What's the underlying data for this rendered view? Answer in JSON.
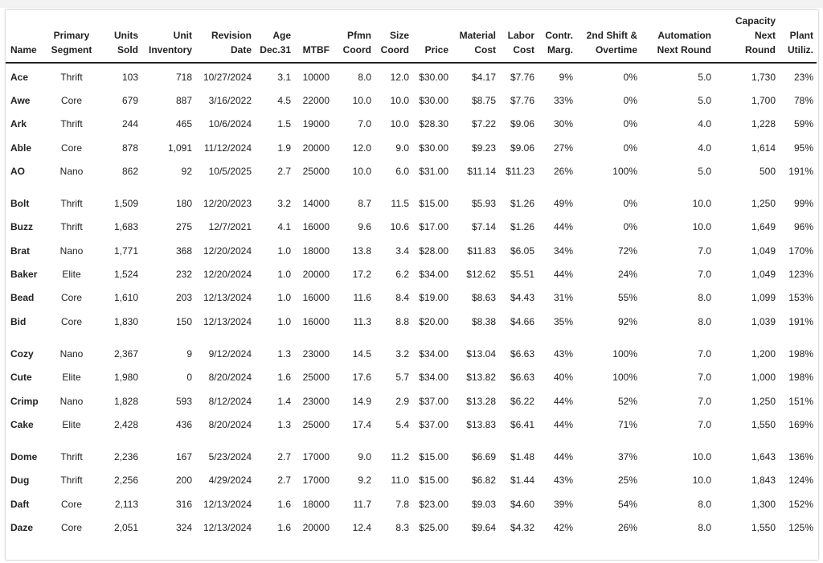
{
  "headers": [
    [
      "Name"
    ],
    [
      "Primary",
      "Segment"
    ],
    [
      "Units",
      "Sold"
    ],
    [
      "Unit",
      "Inventory"
    ],
    [
      "Revision",
      "Date"
    ],
    [
      "Age",
      "Dec.31"
    ],
    [
      "MTBF"
    ],
    [
      "Pfmn",
      "Coord"
    ],
    [
      "Size",
      "Coord"
    ],
    [
      "Price"
    ],
    [
      "Material",
      "Cost"
    ],
    [
      "Labor",
      "Cost"
    ],
    [
      "Contr.",
      "Marg."
    ],
    [
      "2nd Shift &",
      "Overtime"
    ],
    [
      "Automation",
      "Next Round"
    ],
    [
      "Capacity",
      "Next",
      "Round"
    ],
    [
      "Plant",
      "Utiliz."
    ]
  ],
  "groups": [
    [
      [
        "Ace",
        "Thrift",
        "103",
        "718",
        "10/27/2024",
        "3.1",
        "10000",
        "8.0",
        "12.0",
        "$30.00",
        "$4.17",
        "$7.76",
        "9%",
        "0%",
        "5.0",
        "1,730",
        "23%"
      ],
      [
        "Awe",
        "Core",
        "679",
        "887",
        "3/16/2022",
        "4.5",
        "22000",
        "10.0",
        "10.0",
        "$30.00",
        "$8.75",
        "$7.76",
        "33%",
        "0%",
        "5.0",
        "1,700",
        "78%"
      ],
      [
        "Ark",
        "Thrift",
        "244",
        "465",
        "10/6/2024",
        "1.5",
        "19000",
        "7.0",
        "10.0",
        "$28.30",
        "$7.22",
        "$9.06",
        "30%",
        "0%",
        "4.0",
        "1,228",
        "59%"
      ],
      [
        "Able",
        "Core",
        "878",
        "1,091",
        "11/12/2024",
        "1.9",
        "20000",
        "12.0",
        "9.0",
        "$30.00",
        "$9.23",
        "$9.06",
        "27%",
        "0%",
        "4.0",
        "1,614",
        "95%"
      ],
      [
        "AO",
        "Nano",
        "862",
        "92",
        "10/5/2025",
        "2.7",
        "25000",
        "10.0",
        "6.0",
        "$31.00",
        "$11.14",
        "$11.23",
        "26%",
        "100%",
        "5.0",
        "500",
        "191%"
      ]
    ],
    [
      [
        "Bolt",
        "Thrift",
        "1,509",
        "180",
        "12/20/2023",
        "3.2",
        "14000",
        "8.7",
        "11.5",
        "$15.00",
        "$5.93",
        "$1.26",
        "49%",
        "0%",
        "10.0",
        "1,250",
        "99%"
      ],
      [
        "Buzz",
        "Thrift",
        "1,683",
        "275",
        "12/7/2021",
        "4.1",
        "16000",
        "9.6",
        "10.6",
        "$17.00",
        "$7.14",
        "$1.26",
        "44%",
        "0%",
        "10.0",
        "1,649",
        "96%"
      ],
      [
        "Brat",
        "Nano",
        "1,771",
        "368",
        "12/20/2024",
        "1.0",
        "18000",
        "13.8",
        "3.4",
        "$28.00",
        "$11.83",
        "$6.05",
        "34%",
        "72%",
        "7.0",
        "1,049",
        "170%"
      ],
      [
        "Baker",
        "Elite",
        "1,524",
        "232",
        "12/20/2024",
        "1.0",
        "20000",
        "17.2",
        "6.2",
        "$34.00",
        "$12.62",
        "$5.51",
        "44%",
        "24%",
        "7.0",
        "1,049",
        "123%"
      ],
      [
        "Bead",
        "Core",
        "1,610",
        "203",
        "12/13/2024",
        "1.0",
        "16000",
        "11.6",
        "8.4",
        "$19.00",
        "$8.63",
        "$4.43",
        "31%",
        "55%",
        "8.0",
        "1,099",
        "153%"
      ],
      [
        "Bid",
        "Core",
        "1,830",
        "150",
        "12/13/2024",
        "1.0",
        "16000",
        "11.3",
        "8.8",
        "$20.00",
        "$8.38",
        "$4.66",
        "35%",
        "92%",
        "8.0",
        "1,039",
        "191%"
      ]
    ],
    [
      [
        "Cozy",
        "Nano",
        "2,367",
        "9",
        "9/12/2024",
        "1.3",
        "23000",
        "14.5",
        "3.2",
        "$34.00",
        "$13.04",
        "$6.63",
        "43%",
        "100%",
        "7.0",
        "1,200",
        "198%"
      ],
      [
        "Cute",
        "Elite",
        "1,980",
        "0",
        "8/20/2024",
        "1.6",
        "25000",
        "17.6",
        "5.7",
        "$34.00",
        "$13.82",
        "$6.63",
        "40%",
        "100%",
        "7.0",
        "1,000",
        "198%"
      ],
      [
        "Crimp",
        "Nano",
        "1,828",
        "593",
        "8/12/2024",
        "1.4",
        "23000",
        "14.9",
        "2.9",
        "$37.00",
        "$13.28",
        "$6.22",
        "44%",
        "52%",
        "7.0",
        "1,250",
        "151%"
      ],
      [
        "Cake",
        "Elite",
        "2,428",
        "436",
        "8/20/2024",
        "1.3",
        "25000",
        "17.4",
        "5.4",
        "$37.00",
        "$13.83",
        "$6.41",
        "44%",
        "71%",
        "7.0",
        "1,550",
        "169%"
      ]
    ],
    [
      [
        "Dome",
        "Thrift",
        "2,236",
        "167",
        "5/23/2024",
        "2.7",
        "17000",
        "9.0",
        "11.2",
        "$15.00",
        "$6.69",
        "$1.48",
        "44%",
        "37%",
        "10.0",
        "1,643",
        "136%"
      ],
      [
        "Dug",
        "Thrift",
        "2,256",
        "200",
        "4/29/2024",
        "2.7",
        "17000",
        "9.2",
        "11.0",
        "$15.00",
        "$6.82",
        "$1.44",
        "43%",
        "25%",
        "10.0",
        "1,843",
        "124%"
      ],
      [
        "Daft",
        "Core",
        "2,113",
        "316",
        "12/13/2024",
        "1.6",
        "18000",
        "11.7",
        "7.8",
        "$23.00",
        "$9.03",
        "$4.60",
        "39%",
        "54%",
        "8.0",
        "1,300",
        "152%"
      ],
      [
        "Daze",
        "Core",
        "2,051",
        "324",
        "12/13/2024",
        "1.6",
        "20000",
        "12.4",
        "8.3",
        "$25.00",
        "$9.64",
        "$4.32",
        "42%",
        "26%",
        "8.0",
        "1,550",
        "125%"
      ]
    ]
  ]
}
